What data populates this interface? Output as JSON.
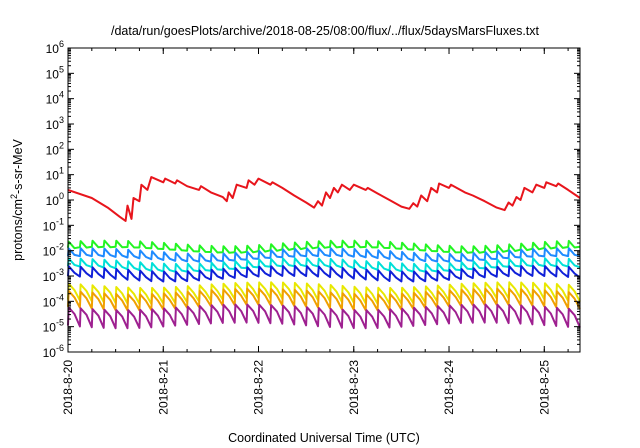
{
  "chart_data": {
    "type": "line",
    "title": "/data/run/goesPlots/archive/2018-08-25/08:00/flux/../flux/5daysMarsFluxes.txt",
    "xlabel": "Coordinated Universal Time (UTC)",
    "ylabel_base": "protons/cm",
    "ylabel_sup": "2",
    "ylabel_rest": "-s-sr-MeV",
    "yscale": "log",
    "ylim": [
      1e-06,
      1000000.0
    ],
    "ytick_exponents": [
      -6,
      -5,
      -4,
      -3,
      -2,
      -1,
      0,
      1,
      2,
      3,
      4,
      5,
      6
    ],
    "xlim": [
      "2018-08-20T00:00",
      "2018-08-25T09:00"
    ],
    "xticks": [
      "2018-8-20",
      "2018-8-21",
      "2018-8-22",
      "2018-8-23",
      "2018-8-24",
      "2018-8-25"
    ],
    "grid": false,
    "series": [
      {
        "color": "#e8151c",
        "width": 2,
        "points": [
          [
            "2018-08-20T00:00",
            2.5
          ],
          [
            "2018-08-20T06:00",
            1.2
          ],
          [
            "2018-08-20T10:00",
            0.5
          ],
          [
            "2018-08-20T13:00",
            0.22
          ],
          [
            "2018-08-20T14:30",
            0.15
          ],
          [
            "2018-08-20T15:00",
            0.6
          ],
          [
            "2018-08-20T16:00",
            0.18
          ],
          [
            "2018-08-20T16:30",
            1.2
          ],
          [
            "2018-08-20T18:00",
            0.9
          ],
          [
            "2018-08-20T18:30",
            4.0
          ],
          [
            "2018-08-20T20:00",
            2.5
          ],
          [
            "2018-08-20T21:00",
            8.0
          ],
          [
            "2018-08-21T00:00",
            5.0
          ],
          [
            "2018-08-21T00:30",
            7.0
          ],
          [
            "2018-08-21T03:00",
            4.5
          ],
          [
            "2018-08-21T03:30",
            6.0
          ],
          [
            "2018-08-21T06:00",
            3.5
          ],
          [
            "2018-08-21T09:00",
            2.5
          ],
          [
            "2018-08-21T09:30",
            3.5
          ],
          [
            "2018-08-21T12:00",
            2.0
          ],
          [
            "2018-08-21T15:00",
            1.3
          ],
          [
            "2018-08-21T16:00",
            0.9
          ],
          [
            "2018-08-21T16:30",
            2.0
          ],
          [
            "2018-08-21T17:30",
            1.2
          ],
          [
            "2018-08-21T18:30",
            4.0
          ],
          [
            "2018-08-21T21:00",
            3.0
          ],
          [
            "2018-08-21T21:30",
            6.0
          ],
          [
            "2018-08-21T23:00",
            4.0
          ],
          [
            "2018-08-22T00:00",
            7.0
          ],
          [
            "2018-08-22T03:00",
            4.0
          ],
          [
            "2018-08-22T03:30",
            5.0
          ],
          [
            "2018-08-22T06:00",
            3.0
          ],
          [
            "2018-08-22T09:00",
            1.5
          ],
          [
            "2018-08-22T12:00",
            0.8
          ],
          [
            "2018-08-22T14:00",
            0.5
          ],
          [
            "2018-08-22T15:00",
            0.9
          ],
          [
            "2018-08-22T16:00",
            0.6
          ],
          [
            "2018-08-22T17:00",
            2.0
          ],
          [
            "2018-08-22T18:00",
            1.2
          ],
          [
            "2018-08-22T19:00",
            3.0
          ],
          [
            "2018-08-22T20:00",
            2.0
          ],
          [
            "2018-08-22T21:00",
            4.0
          ],
          [
            "2018-08-22T23:00",
            2.5
          ],
          [
            "2018-08-23T00:00",
            4.0
          ],
          [
            "2018-08-23T03:00",
            2.5
          ],
          [
            "2018-08-23T03:30",
            3.0
          ],
          [
            "2018-08-23T06:00",
            1.8
          ],
          [
            "2018-08-23T09:00",
            1.0
          ],
          [
            "2018-08-23T12:00",
            0.55
          ],
          [
            "2018-08-23T14:00",
            0.45
          ],
          [
            "2018-08-23T15:00",
            0.75
          ],
          [
            "2018-08-23T16:00",
            0.55
          ],
          [
            "2018-08-23T17:00",
            1.5
          ],
          [
            "2018-08-23T18:30",
            0.9
          ],
          [
            "2018-08-23T19:30",
            3.0
          ],
          [
            "2018-08-23T21:00",
            2.0
          ],
          [
            "2018-08-23T21:30",
            4.5
          ],
          [
            "2018-08-24T00:00",
            3.0
          ],
          [
            "2018-08-24T00:30",
            4.0
          ],
          [
            "2018-08-24T04:00",
            2.0
          ],
          [
            "2018-08-24T06:00",
            1.5
          ],
          [
            "2018-08-24T09:00",
            0.9
          ],
          [
            "2018-08-24T12:00",
            0.5
          ],
          [
            "2018-08-24T14:00",
            0.4
          ],
          [
            "2018-08-24T15:00",
            0.8
          ],
          [
            "2018-08-24T16:00",
            0.6
          ],
          [
            "2018-08-24T17:00",
            1.3
          ],
          [
            "2018-08-24T18:00",
            1.0
          ],
          [
            "2018-08-24T19:00",
            3.0
          ],
          [
            "2018-08-24T21:00",
            2.0
          ],
          [
            "2018-08-24T22:00",
            4.0
          ],
          [
            "2018-08-25T00:00",
            3.0
          ],
          [
            "2018-08-25T00:30",
            5.0
          ],
          [
            "2018-08-25T03:00",
            3.5
          ],
          [
            "2018-08-25T03:30",
            4.5
          ],
          [
            "2018-08-25T06:00",
            2.5
          ],
          [
            "2018-08-25T09:00",
            1.2
          ]
        ]
      },
      {
        "color": "#22f522",
        "width": 2,
        "base": 0.02,
        "amp": 0.5,
        "phase": 0.1
      },
      {
        "color": "#1e8bff",
        "width": 2,
        "base": 0.01,
        "amp": 0.6,
        "phase": 0.2
      },
      {
        "color": "#00e0d8",
        "width": 2,
        "base": 0.004,
        "amp": 0.6,
        "phase": 0.3
      },
      {
        "color": "#1020d8",
        "width": 2,
        "base": 0.002,
        "amp": 0.7,
        "phase": 0.35
      },
      {
        "color": "#e8e800",
        "width": 2,
        "base": 0.00045,
        "amp": 0.9,
        "phase": 0.45
      },
      {
        "color": "#f0a000",
        "width": 2,
        "base": 0.00025,
        "amp": 0.9,
        "phase": 0.5
      },
      {
        "color": "#9e2090",
        "width": 2,
        "base": 6e-05,
        "amp": 0.95,
        "phase": 0.55
      }
    ],
    "sawtooth_period_hours": 3.0,
    "colors": {
      "axis": "#000000",
      "background": "#ffffff"
    }
  }
}
